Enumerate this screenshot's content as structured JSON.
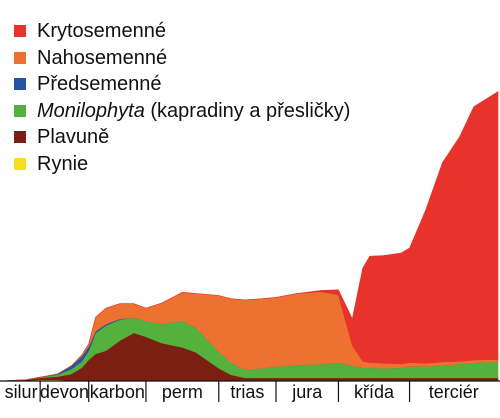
{
  "chart_data": {
    "type": "area",
    "stacked": true,
    "title": "",
    "xlabel": "",
    "ylabel": "",
    "legend_position": "top-left",
    "grid": false,
    "x_categories": [
      "silur",
      "devon",
      "karbon",
      "perm",
      "trias",
      "jura",
      "křída",
      "terciér"
    ],
    "x_boundaries": [
      0,
      1.1,
      2.5,
      4.15,
      6.25,
      7.9,
      9.7,
      11.75,
      14.3
    ],
    "x": [
      0,
      0.7,
      1.1,
      1.6,
      2.0,
      2.3,
      2.5,
      2.7,
      3.0,
      3.4,
      3.8,
      4.15,
      4.6,
      5.2,
      5.6,
      6.25,
      6.6,
      7.0,
      7.5,
      7.9,
      8.5,
      9.2,
      9.7,
      10.1,
      10.4,
      10.6,
      11.0,
      11.5,
      11.75,
      12.2,
      12.7,
      13.2,
      13.6,
      14.3
    ],
    "series": [
      {
        "name": "Rynie",
        "color": "#f2e01e",
        "values": [
          0,
          0.1,
          0.2,
          0.2,
          0.1,
          0.1,
          0.05,
          0,
          0,
          0,
          0,
          0,
          0,
          0,
          0,
          0,
          0,
          0,
          0,
          0,
          0,
          0,
          0,
          0,
          0,
          0,
          0,
          0,
          0,
          0,
          0,
          0,
          0,
          0
        ]
      },
      {
        "name": "Plavuně",
        "color": "#7b1f13",
        "values": [
          0,
          0.1,
          0.3,
          0.5,
          1.0,
          2.0,
          3.3,
          4.3,
          4.8,
          6.4,
          7.6,
          7.0,
          6.0,
          5.3,
          4.5,
          2.0,
          1.0,
          0.5,
          0.5,
          0.5,
          0.5,
          0.5,
          0.5,
          0.5,
          0.5,
          0.5,
          0.5,
          0.5,
          0.5,
          0.5,
          0.5,
          0.5,
          0.5,
          0.5
        ]
      },
      {
        "name": "Monilophyta",
        "name_suffix": "(kapradiny a přesličky)",
        "color": "#53b13c",
        "values": [
          0,
          0,
          0.1,
          0.3,
          0.8,
          1.0,
          1.4,
          3.3,
          4.0,
          3.3,
          2.4,
          2.5,
          3.0,
          4.2,
          3.9,
          2.6,
          1.9,
          1.3,
          1.5,
          1.8,
          2.0,
          2.2,
          2.4,
          1.9,
          1.6,
          1.6,
          1.5,
          1.6,
          1.8,
          1.8,
          2.0,
          2.2,
          2.4,
          2.5
        ]
      },
      {
        "name": "Předsemenné",
        "color": "#2453a4",
        "values": [
          0,
          0,
          0,
          0.1,
          0.5,
          0.8,
          0.7,
          0.3,
          0.2,
          0.1,
          0,
          0,
          0,
          0,
          0,
          0,
          0,
          0,
          0,
          0,
          0,
          0,
          0,
          0,
          0,
          0,
          0,
          0,
          0,
          0,
          0,
          0,
          0,
          0
        ]
      },
      {
        "name": "Nahosemenné",
        "color": "#ed7231",
        "values": [
          0,
          0,
          0,
          0,
          0,
          0.2,
          0.4,
          2.2,
          2.5,
          2.4,
          2.2,
          2.0,
          3.3,
          4.5,
          5.4,
          8.9,
          10.1,
          11.0,
          11.0,
          10.9,
          11.3,
          11.4,
          10.7,
          3.2,
          1.0,
          0.8,
          0.8,
          0.6,
          0.6,
          0.5,
          0.5,
          0.4,
          0.4,
          0.4
        ]
      },
      {
        "name": "Krytosemenné",
        "color": "#e8322c",
        "values": [
          0,
          0,
          0,
          0,
          0,
          0,
          0,
          0,
          0,
          0,
          0,
          0,
          0,
          0,
          0,
          0,
          0,
          0,
          0,
          0,
          0,
          0.2,
          0.8,
          4.2,
          14.7,
          16.8,
          17.0,
          17.5,
          18.1,
          24.0,
          31.5,
          35.5,
          40.0,
          42.3
        ]
      }
    ]
  },
  "legend_order": [
    "Krytosemenné",
    "Nahosemenné",
    "Předsemenné",
    "Monilophyta",
    "Plavuně",
    "Rynie"
  ]
}
